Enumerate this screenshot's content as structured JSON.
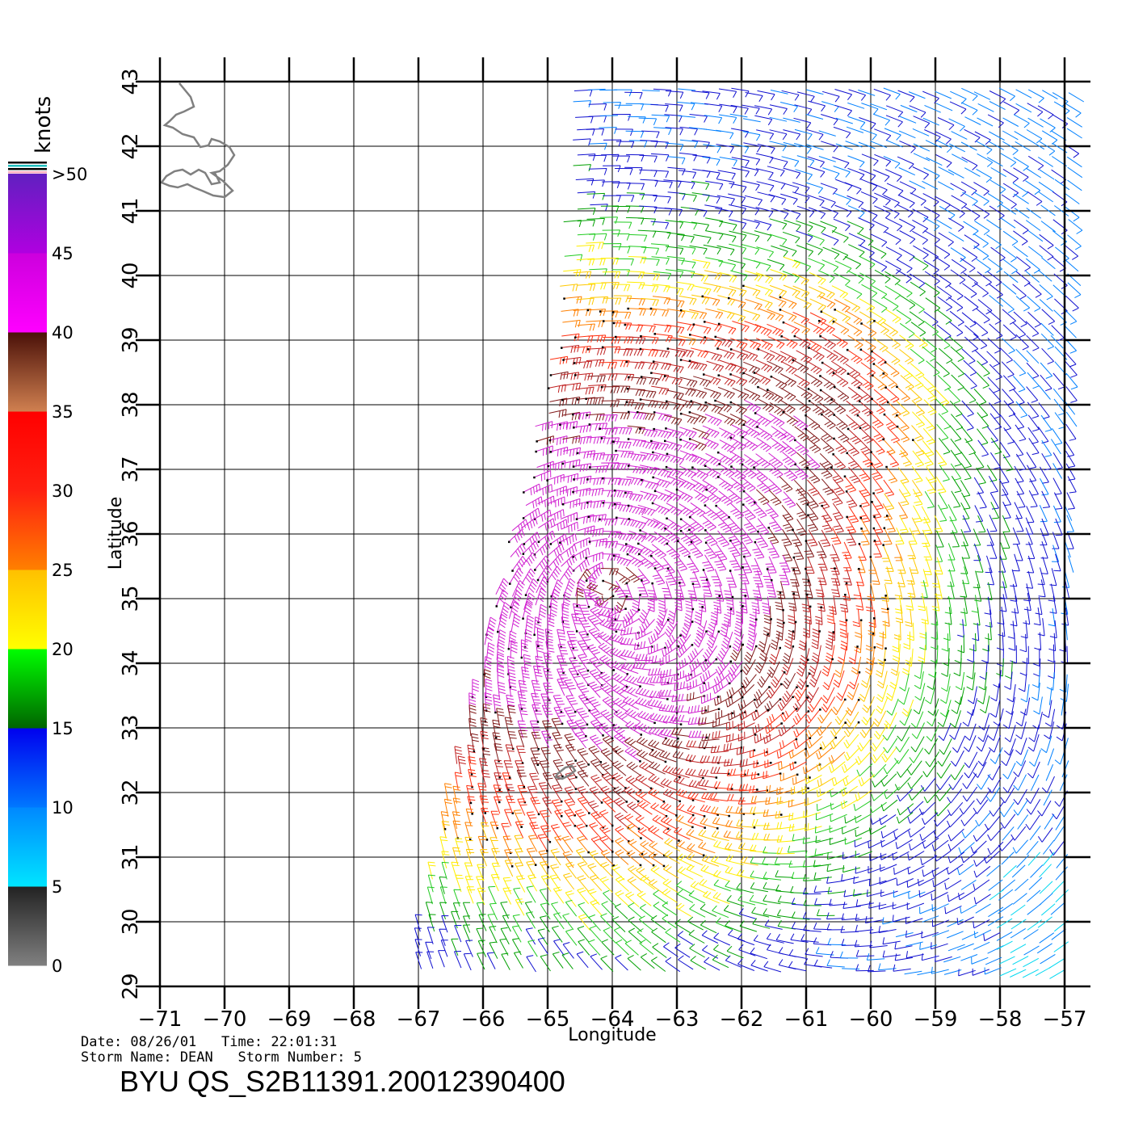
{
  "colorbar": {
    "unit_label": "knots",
    "ticks": [
      "0",
      "5",
      "10",
      "15",
      "20",
      "25",
      "30",
      "35",
      "40",
      "45",
      ">50"
    ],
    "segments": [
      {
        "from": "#808080",
        "to": "#222222"
      },
      {
        "from": "#00e5ff",
        "to": "#0088ff"
      },
      {
        "from": "#0077ff",
        "to": "#0000ee"
      },
      {
        "from": "#006400",
        "to": "#00ff00"
      },
      {
        "from": "#ffff00",
        "to": "#ffc000"
      },
      {
        "from": "#ff8000",
        "to": "#ff2010"
      },
      {
        "from": "#ff2010",
        "to": "#ff0000"
      },
      {
        "from": "#d08050",
        "to": "#4a1008"
      },
      {
        "from": "#ff00ff",
        "to": "#cc00dd"
      },
      {
        "from": "#b000e0",
        "to": "#6020c0"
      }
    ]
  },
  "map": {
    "xlabel": "Longitude",
    "ylabel": "Latitude",
    "lon_ticks": [
      "-71",
      "-70",
      "-69",
      "-68",
      "-67",
      "-66",
      "-65",
      "-64",
      "-63",
      "-62",
      "-61",
      "-60",
      "-59",
      "-58",
      "-57"
    ],
    "lat_ticks": [
      "29",
      "30",
      "31",
      "32",
      "33",
      "34",
      "35",
      "36",
      "37",
      "38",
      "39",
      "40",
      "41",
      "42",
      "43"
    ],
    "lon_range": [
      -71,
      -57
    ],
    "lat_range": [
      29,
      43
    ],
    "storm_center": {
      "lon": -64.2,
      "lat": 35.2
    },
    "features": [
      "cape-cod-coastline",
      "bermuda-island",
      "wind-barbs"
    ]
  },
  "info": {
    "date_line": "Date: 08/26/01   Time: 22:01:31",
    "storm_line": "Storm Name: DEAN   Storm Number: 5",
    "product_id": "BYU QS_S2B11391.20012390400"
  }
}
